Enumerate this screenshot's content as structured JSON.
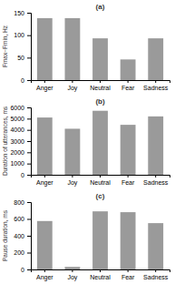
{
  "chart_data": [
    {
      "type": "bar",
      "title": "(a)",
      "ylabel": "Fmax−Fmin, Hz",
      "categories": [
        "Anger",
        "Joy",
        "Neutral",
        "Fear",
        "Sadness"
      ],
      "values": [
        138,
        138,
        93,
        46,
        93
      ],
      "color": "#9a9a9a",
      "ylim": [
        0,
        150
      ],
      "yticks": [
        0,
        50,
        100,
        150
      ]
    },
    {
      "type": "bar",
      "title": "(b)",
      "ylabel": "Duration of utterances, ms",
      "categories": [
        "Anger",
        "Joy",
        "Neutral",
        "Fear",
        "Sadness"
      ],
      "values": [
        5100,
        4100,
        5700,
        4450,
        5200
      ],
      "color": "#9a9a9a",
      "ylim": [
        0,
        6000
      ],
      "yticks": [
        0,
        1000,
        2000,
        3000,
        4000,
        5000,
        6000
      ]
    },
    {
      "type": "bar",
      "title": "(c)",
      "ylabel": "Pause duration, ms",
      "categories": [
        "Anger",
        "Joy",
        "Neutral",
        "Fear",
        "Sadness"
      ],
      "values": [
        575,
        30,
        690,
        680,
        550
      ],
      "color": "#9a9a9a",
      "ylim": [
        0,
        800
      ],
      "yticks": [
        0,
        200,
        400,
        600,
        800
      ]
    }
  ]
}
